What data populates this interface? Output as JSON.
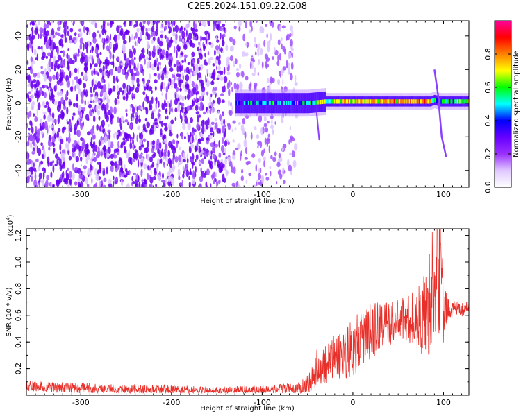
{
  "chart_data": [
    {
      "type": "heatmap",
      "title": "C2E5.2024.151.09.22.G08",
      "xlabel": "Height of straight line (km)",
      "ylabel": "Frequency (Hz)",
      "xlim": [
        -360,
        128
      ],
      "ylim": [
        -50,
        49
      ],
      "x_ticks": [
        "-300",
        "-200",
        "-100",
        "0",
        "100"
      ],
      "x_tick_values": [
        -300,
        -200,
        -100,
        0,
        100
      ],
      "y_ticks": [
        "-40",
        "-20",
        "0",
        "20",
        "40"
      ],
      "y_tick_values": [
        -40,
        -20,
        0,
        20,
        40
      ],
      "colorbar": {
        "label": "Normalized spectral amplitude",
        "range": [
          0,
          1
        ],
        "ticks": [
          "0.0",
          "0.2",
          "0.4",
          "0.6",
          "0.8"
        ],
        "tick_values": [
          0.0,
          0.2,
          0.4,
          0.6,
          0.8
        ],
        "colors": [
          "#ffffff",
          "#e0c8ff",
          "#9b30ff",
          "#6600ff",
          "#0000ff",
          "#00ffff",
          "#00ff00",
          "#ffff00",
          "#ff8000",
          "#ff0000",
          "#ff0099"
        ]
      },
      "ridge": {
        "x": [
          -130,
          -110,
          -90,
          -70,
          -50,
          -30,
          -10,
          10,
          30,
          50,
          70,
          85,
          90,
          95,
          110,
          128
        ],
        "freq": [
          0,
          0,
          0,
          0,
          0,
          1,
          1,
          1,
          1,
          1,
          1,
          1,
          2,
          1,
          1,
          1
        ],
        "amplitude": [
          0.35,
          0.45,
          0.45,
          0.4,
          0.5,
          0.6,
          0.75,
          0.7,
          0.72,
          0.75,
          0.8,
          0.7,
          0.55,
          0.5,
          0.55,
          0.6
        ]
      }
    },
    {
      "type": "line",
      "xlabel": "Height of straight line (km)",
      "ylabel": "SNR (10 * v/v)",
      "y_multiplier": "(x10",
      "y_multiplier_exp": "4",
      "y_multiplier_close": ")",
      "xlim": [
        -360,
        128
      ],
      "ylim": [
        0,
        12500
      ],
      "x_ticks": [
        "-300",
        "-200",
        "-100",
        "0",
        "100"
      ],
      "x_tick_values": [
        -300,
        -200,
        -100,
        0,
        100
      ],
      "y_ticks": [
        "0.2",
        "0.4",
        "0.6",
        "0.8",
        "1.0",
        "1.2"
      ],
      "y_tick_values": [
        2000,
        4000,
        6000,
        8000,
        10000,
        12000
      ],
      "color": "#e8302a",
      "series": [
        {
          "x": [
            -360,
            -340,
            -300,
            -250,
            -200,
            -150,
            -100,
            -60,
            -50,
            -45,
            -40,
            -30,
            -20,
            -10,
            0,
            10,
            20,
            30,
            40,
            50,
            60,
            70,
            80,
            85,
            90,
            95,
            98,
            100,
            105,
            110,
            120,
            128
          ],
          "y": [
            700,
            600,
            550,
            450,
            400,
            350,
            400,
            500,
            800,
            1200,
            2000,
            2400,
            2800,
            3200,
            3600,
            4200,
            4800,
            5200,
            5400,
            5600,
            5800,
            5600,
            6200,
            7000,
            8500,
            9500,
            12200,
            6000,
            6500,
            6500,
            6400,
            6700
          ],
          "spread": [
            400,
            400,
            400,
            350,
            350,
            300,
            350,
            450,
            700,
            1000,
            1400,
            1600,
            1800,
            2000,
            2200,
            2200,
            2200,
            2000,
            1800,
            1600,
            1800,
            2400,
            3200,
            4200,
            5000,
            5200,
            5500,
            2500,
            800,
            600,
            500,
            400
          ]
        }
      ]
    }
  ]
}
